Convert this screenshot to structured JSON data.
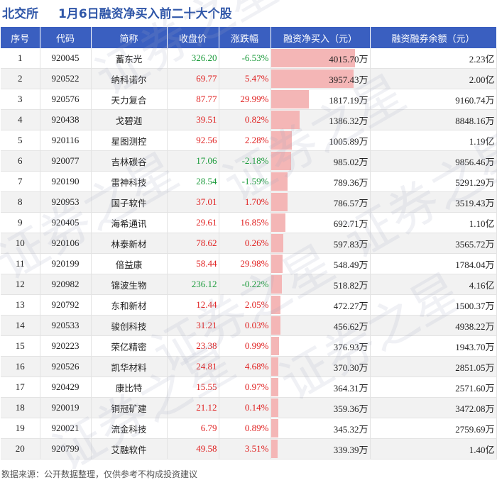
{
  "header": {
    "exchange": "北交所",
    "title": "1月6日融资净买入前二十大个股"
  },
  "columns": [
    "序号",
    "代码",
    "简称",
    "收盘价",
    "涨跌幅",
    "融资净买入（元）",
    "融资融券余额（元）"
  ],
  "chart_data": {
    "type": "table",
    "title": "1月6日融资净买入前二十大个股",
    "columns": [
      "序号",
      "代码",
      "简称",
      "收盘价",
      "涨跌幅",
      "融资净买入（元）",
      "融资融券余额（元）"
    ],
    "rows": [
      {
        "rank": "1",
        "code": "920045",
        "name": "蓄东光",
        "price": "326.20",
        "change": "-6.53%",
        "net_buy": "4015.70万",
        "net_buy_value": 4015.7,
        "balance": "2.23亿"
      },
      {
        "rank": "2",
        "code": "920522",
        "name": "纳科诺尔",
        "price": "69.77",
        "change": "5.47%",
        "net_buy": "3957.43万",
        "net_buy_value": 3957.43,
        "balance": "2.00亿"
      },
      {
        "rank": "3",
        "code": "920576",
        "name": "天力复合",
        "price": "87.77",
        "change": "29.99%",
        "net_buy": "1817.19万",
        "net_buy_value": 1817.19,
        "balance": "9160.74万"
      },
      {
        "rank": "4",
        "code": "920438",
        "name": "戈碧迦",
        "price": "39.51",
        "change": "0.82%",
        "net_buy": "1386.32万",
        "net_buy_value": 1386.32,
        "balance": "8848.16万"
      },
      {
        "rank": "5",
        "code": "920116",
        "name": "星图测控",
        "price": "92.56",
        "change": "2.28%",
        "net_buy": "1005.89万",
        "net_buy_value": 1005.89,
        "balance": "1.19亿"
      },
      {
        "rank": "6",
        "code": "920077",
        "name": "吉林碳谷",
        "price": "17.06",
        "change": "-2.18%",
        "net_buy": "985.02万",
        "net_buy_value": 985.02,
        "balance": "9856.46万"
      },
      {
        "rank": "7",
        "code": "920190",
        "name": "雷神科技",
        "price": "28.54",
        "change": "-1.59%",
        "net_buy": "789.36万",
        "net_buy_value": 789.36,
        "balance": "5291.29万"
      },
      {
        "rank": "8",
        "code": "920953",
        "name": "国子软件",
        "price": "37.01",
        "change": "1.70%",
        "net_buy": "786.57万",
        "net_buy_value": 786.57,
        "balance": "3519.43万"
      },
      {
        "rank": "9",
        "code": "920405",
        "name": "海希通讯",
        "price": "29.61",
        "change": "16.85%",
        "net_buy": "692.71万",
        "net_buy_value": 692.71,
        "balance": "1.10亿"
      },
      {
        "rank": "10",
        "code": "920106",
        "name": "林泰新材",
        "price": "78.62",
        "change": "0.26%",
        "net_buy": "597.83万",
        "net_buy_value": 597.83,
        "balance": "3565.72万"
      },
      {
        "rank": "11",
        "code": "920199",
        "name": "倍益康",
        "price": "58.44",
        "change": "29.98%",
        "net_buy": "548.49万",
        "net_buy_value": 548.49,
        "balance": "1784.04万"
      },
      {
        "rank": "12",
        "code": "920982",
        "name": "锦波生物",
        "price": "236.12",
        "change": "-0.22%",
        "net_buy": "518.82万",
        "net_buy_value": 518.82,
        "balance": "4.16亿"
      },
      {
        "rank": "13",
        "code": "920792",
        "name": "东和新材",
        "price": "12.44",
        "change": "2.05%",
        "net_buy": "472.27万",
        "net_buy_value": 472.27,
        "balance": "1500.37万"
      },
      {
        "rank": "14",
        "code": "920533",
        "name": "骏创科技",
        "price": "31.21",
        "change": "0.03%",
        "net_buy": "456.62万",
        "net_buy_value": 456.62,
        "balance": "4938.22万"
      },
      {
        "rank": "15",
        "code": "920223",
        "name": "荣亿精密",
        "price": "23.38",
        "change": "0.99%",
        "net_buy": "376.93万",
        "net_buy_value": 376.93,
        "balance": "1943.70万"
      },
      {
        "rank": "16",
        "code": "920526",
        "name": "凯华材料",
        "price": "24.81",
        "change": "4.68%",
        "net_buy": "370.30万",
        "net_buy_value": 370.3,
        "balance": "2851.05万"
      },
      {
        "rank": "17",
        "code": "920429",
        "name": "康比特",
        "price": "15.55",
        "change": "0.97%",
        "net_buy": "364.31万",
        "net_buy_value": 364.31,
        "balance": "2571.60万"
      },
      {
        "rank": "18",
        "code": "920019",
        "name": "铜冠矿建",
        "price": "21.12",
        "change": "0.14%",
        "net_buy": "359.36万",
        "net_buy_value": 359.36,
        "balance": "3472.08万"
      },
      {
        "rank": "19",
        "code": "920021",
        "name": "流金科技",
        "price": "6.79",
        "change": "0.89%",
        "net_buy": "345.32万",
        "net_buy_value": 345.32,
        "balance": "2759.69万"
      },
      {
        "rank": "20",
        "code": "920799",
        "name": "艾融软件",
        "price": "49.58",
        "change": "3.51%",
        "net_buy": "339.39万",
        "net_buy_value": 339.39,
        "balance": "1.40亿"
      }
    ],
    "bar_max": 4015.7
  },
  "colors": {
    "title": "#2f56a8",
    "header_bg": "#3a5fc0",
    "up": "#e02020",
    "down": "#1a9a3a",
    "bar": "#f4b6b6"
  },
  "watermark": "证券之星",
  "footer": "数据来源：公开数据整理，仅供参考不构成投资建议"
}
